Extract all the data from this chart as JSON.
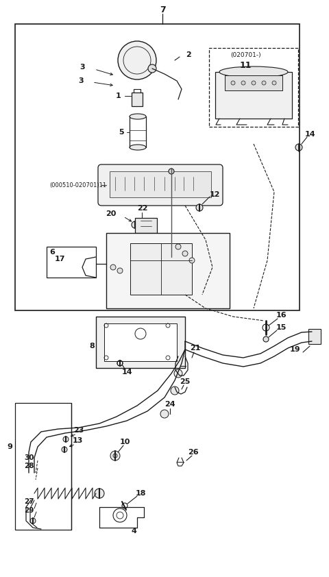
{
  "bg_color": "#ffffff",
  "lc": "#1a1a1a",
  "figsize": [
    4.8,
    8.42
  ],
  "dpi": 100
}
